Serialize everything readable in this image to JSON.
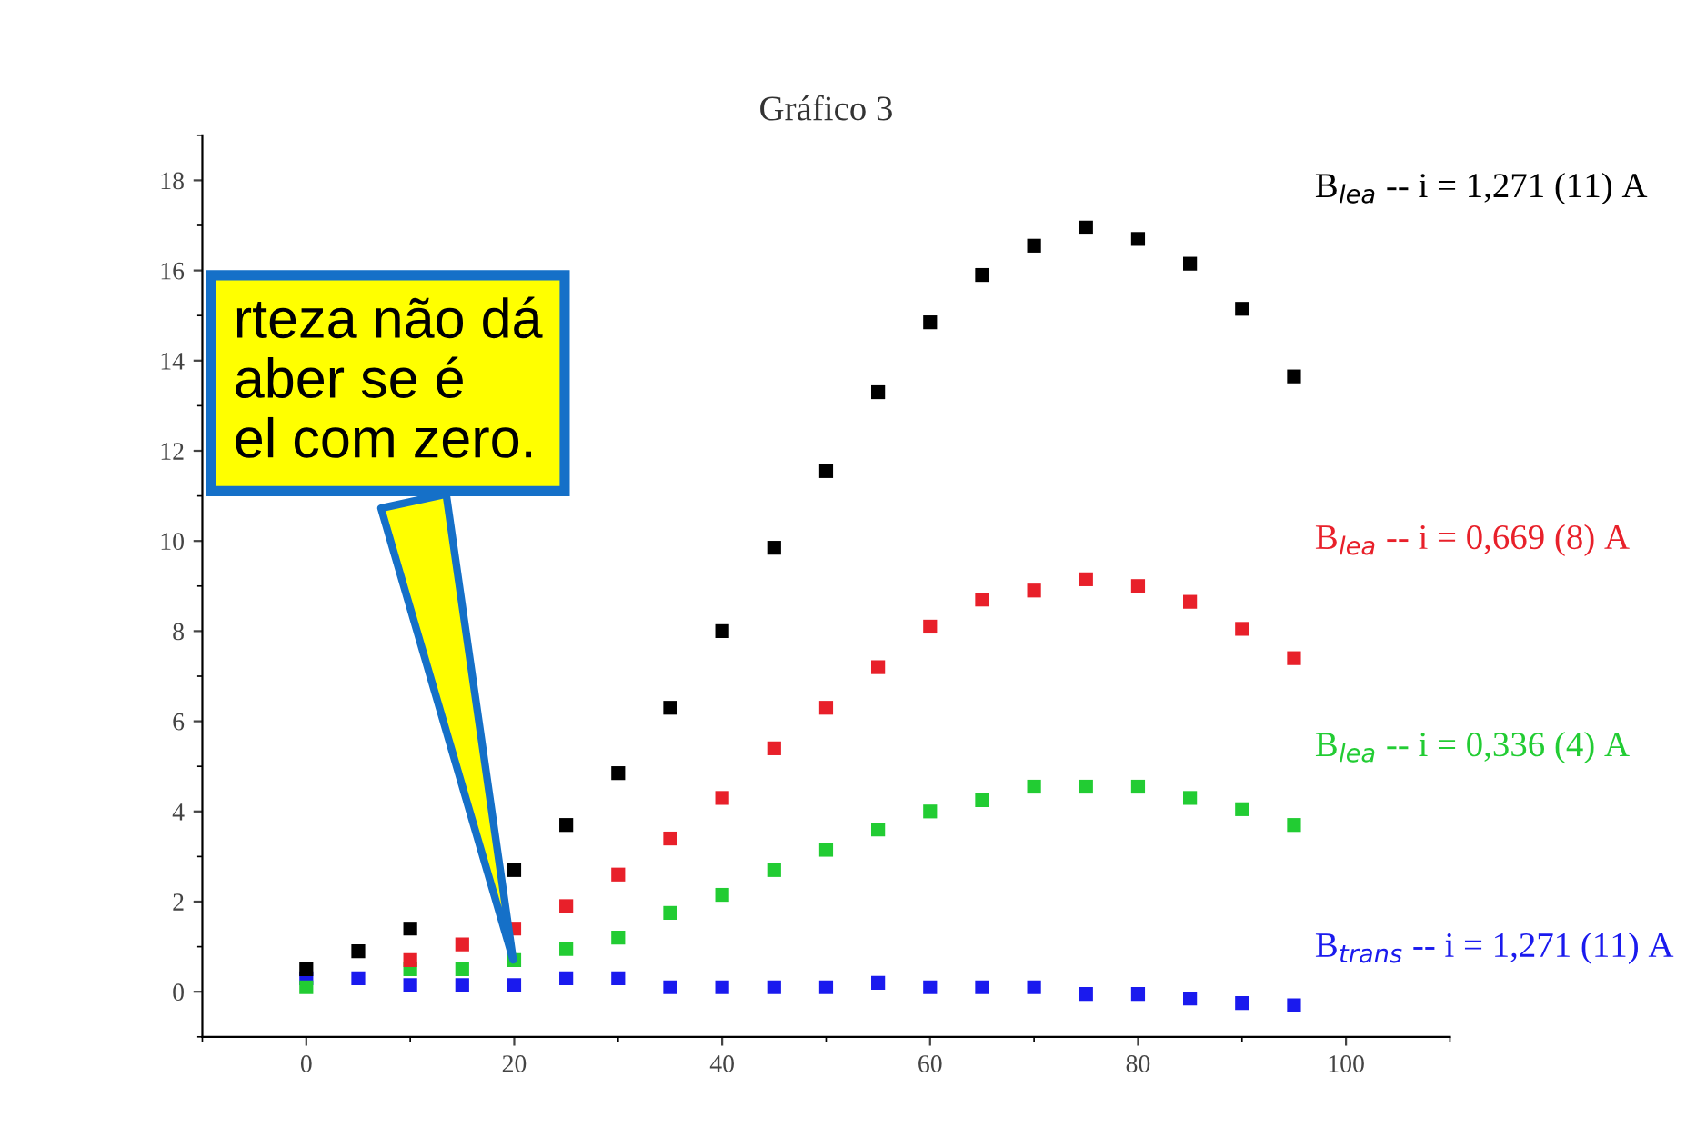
{
  "chart_data": {
    "type": "scatter",
    "title": "Gráfico 3",
    "x": [
      0,
      5,
      10,
      15,
      20,
      25,
      30,
      35,
      40,
      45,
      50,
      55,
      60,
      65,
      70,
      75,
      80,
      85,
      90,
      95
    ],
    "series": [
      {
        "name": "B$_{lea}$ -- i = 1,271 (11) A",
        "color": "#000000",
        "values": [
          0.5,
          0.9,
          1.4,
          null,
          2.7,
          3.7,
          4.85,
          6.3,
          8.0,
          9.85,
          11.55,
          13.3,
          14.85,
          15.9,
          16.55,
          16.95,
          16.7,
          16.15,
          15.15,
          13.65
        ]
      },
      {
        "name": "B$_{lea}$ -- i = 0,669 (8) A",
        "color": "#e8202a",
        "values": [
          null,
          null,
          0.7,
          1.05,
          1.4,
          1.9,
          2.6,
          3.4,
          4.3,
          5.4,
          6.3,
          7.2,
          8.1,
          8.7,
          8.9,
          9.15,
          9.0,
          8.65,
          8.05,
          7.4
        ]
      },
      {
        "name": "B$_{lea}$ -- i = 0,336 (4) A",
        "color": "#22cc33",
        "values": [
          0.1,
          null,
          0.5,
          0.5,
          0.7,
          0.95,
          1.2,
          1.75,
          2.15,
          2.7,
          3.15,
          3.6,
          4.0,
          4.25,
          4.55,
          4.55,
          4.55,
          4.3,
          4.05,
          3.7
        ]
      },
      {
        "name": "B$_{trans}$ -- i = 1,271 (11) A",
        "color": "#1a1aee",
        "values": [
          0.3,
          0.3,
          0.15,
          0.15,
          0.15,
          0.3,
          0.3,
          0.1,
          0.1,
          0.1,
          0.1,
          0.2,
          0.1,
          0.1,
          0.1,
          -0.05,
          -0.05,
          -0.15,
          -0.25,
          -0.3
        ]
      }
    ],
    "xlim": [
      -10,
      110
    ],
    "xticks": [
      0,
      20,
      40,
      60,
      80,
      100
    ],
    "ylim": [
      -1,
      19
    ],
    "yticks": [
      0,
      2,
      4,
      6,
      8,
      10,
      12,
      14,
      16,
      18
    ],
    "marker": "square",
    "grid": false,
    "legend": false,
    "annotations": [
      {
        "text": "rteza não dá\naber se é\nel com zero.",
        "x": 20,
        "y": 0.6
      }
    ]
  }
}
